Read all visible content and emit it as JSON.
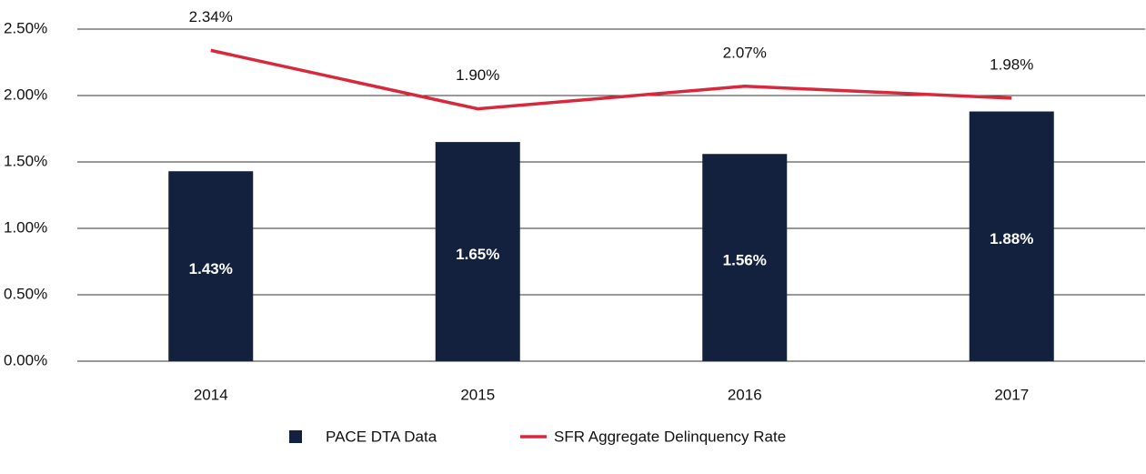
{
  "chart_data": {
    "type": "bar",
    "categories": [
      "2014",
      "2015",
      "2016",
      "2017"
    ],
    "series": [
      {
        "name": "PACE DTA Data",
        "type": "bar",
        "color": "#13213f",
        "values": [
          1.43,
          1.65,
          1.56,
          1.88
        ],
        "value_labels": [
          "1.43%",
          "1.65%",
          "1.56%",
          "1.88%"
        ]
      },
      {
        "name": "SFR Aggregate Delinquency Rate",
        "type": "line",
        "color": "#d8283c",
        "values": [
          2.34,
          1.9,
          2.07,
          1.98
        ],
        "value_labels": [
          "2.34%",
          "1.90%",
          "2.07%",
          "1.98%"
        ]
      }
    ],
    "ylim": [
      0,
      2.5
    ],
    "yticks": [
      {
        "value": 0,
        "label": "0.00%"
      },
      {
        "value": 0.5,
        "label": "0.50%"
      },
      {
        "value": 1,
        "label": "1.00%"
      },
      {
        "value": 1.5,
        "label": "1.50%"
      },
      {
        "value": 2,
        "label": "2.00%"
      },
      {
        "value": 2.5,
        "label": "2.50%"
      }
    ],
    "grid": true,
    "legend": "bottom"
  }
}
